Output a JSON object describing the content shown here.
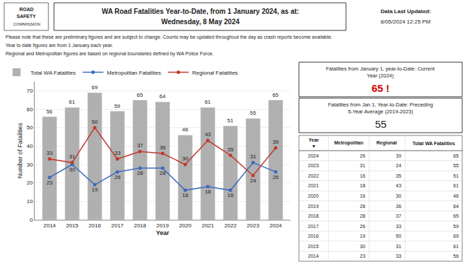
{
  "chart_data": {
    "type": "bar",
    "title": "WA Road Fatalities Year-to-Date, from 1 January 2024, as at:",
    "subtitle": "Wednesday, 8 May 2024",
    "xlabel": "Year",
    "ylabel": "Number of Fatalities",
    "categories": [
      "2014",
      "2015",
      "2016",
      "2017",
      "2018",
      "2019",
      "2020",
      "2021",
      "2022",
      "2023",
      "2024"
    ],
    "series": [
      {
        "name": "Total WA Fatalities",
        "type": "bar",
        "color": "#b0b0b0",
        "values": [
          56,
          61,
          69,
          59,
          65,
          64,
          46,
          61,
          51,
          55,
          65
        ]
      },
      {
        "name": "Metropolitan Fatalities",
        "type": "line",
        "marker": "circle",
        "color": "#3a6bbd",
        "values": [
          23,
          30,
          19,
          26,
          28,
          28,
          16,
          18,
          16,
          31,
          26
        ]
      },
      {
        "name": "Regional Fatalities",
        "type": "line",
        "marker": "circle",
        "color": "#c0392b",
        "values": [
          33,
          31,
          50,
          33,
          37,
          36,
          30,
          43,
          35,
          24,
          39
        ]
      }
    ],
    "ylim": [
      0,
      75
    ],
    "yticks": [
      0,
      10,
      20,
      30,
      40,
      50,
      60,
      70
    ],
    "grid": true,
    "legend": "top",
    "data_labels": true,
    "logo": [
      "ROAD",
      "SAFETY",
      "COMMISSION"
    ],
    "updated": [
      "Data Last Updated:",
      "8/05/2024 12:25 PM"
    ],
    "notes": [
      "Please note that these are preliminary figures and are subject to change. Counts may be updated throughout the day as crash reports become available.",
      "Year to date figures are from 1 January each year.",
      "Regional and Metropolitan figures are based on regional boundaries defined by WA Police Force."
    ],
    "boxes": [
      {
        "label": "Fatalities from January 1, year-to-Date: Current\nYear (2024)",
        "text": "65 !",
        "color": "#cc0000"
      },
      {
        "label": "Fatalities from Jan 1, Year-to-Date: Preceding\n5-Year Average (2019-2023)",
        "text": "55"
      }
    ],
    "table": {
      "columns": [
        "Year\n▼",
        "Metropolitan",
        "Regional",
        "Total WA Fatalities"
      ],
      "rows": [
        [
          2024,
          26,
          39,
          65
        ],
        [
          2023,
          31,
          24,
          55
        ],
        [
          2022,
          16,
          35,
          51
        ],
        [
          2021,
          18,
          43,
          61
        ],
        [
          2020,
          16,
          30,
          46
        ],
        [
          2019,
          28,
          36,
          64
        ],
        [
          2018,
          28,
          37,
          65
        ],
        [
          2017,
          26,
          33,
          59
        ],
        [
          2016,
          19,
          50,
          69
        ],
        [
          2015,
          30,
          31,
          61
        ],
        [
          2014,
          23,
          33,
          56
        ]
      ]
    }
  }
}
